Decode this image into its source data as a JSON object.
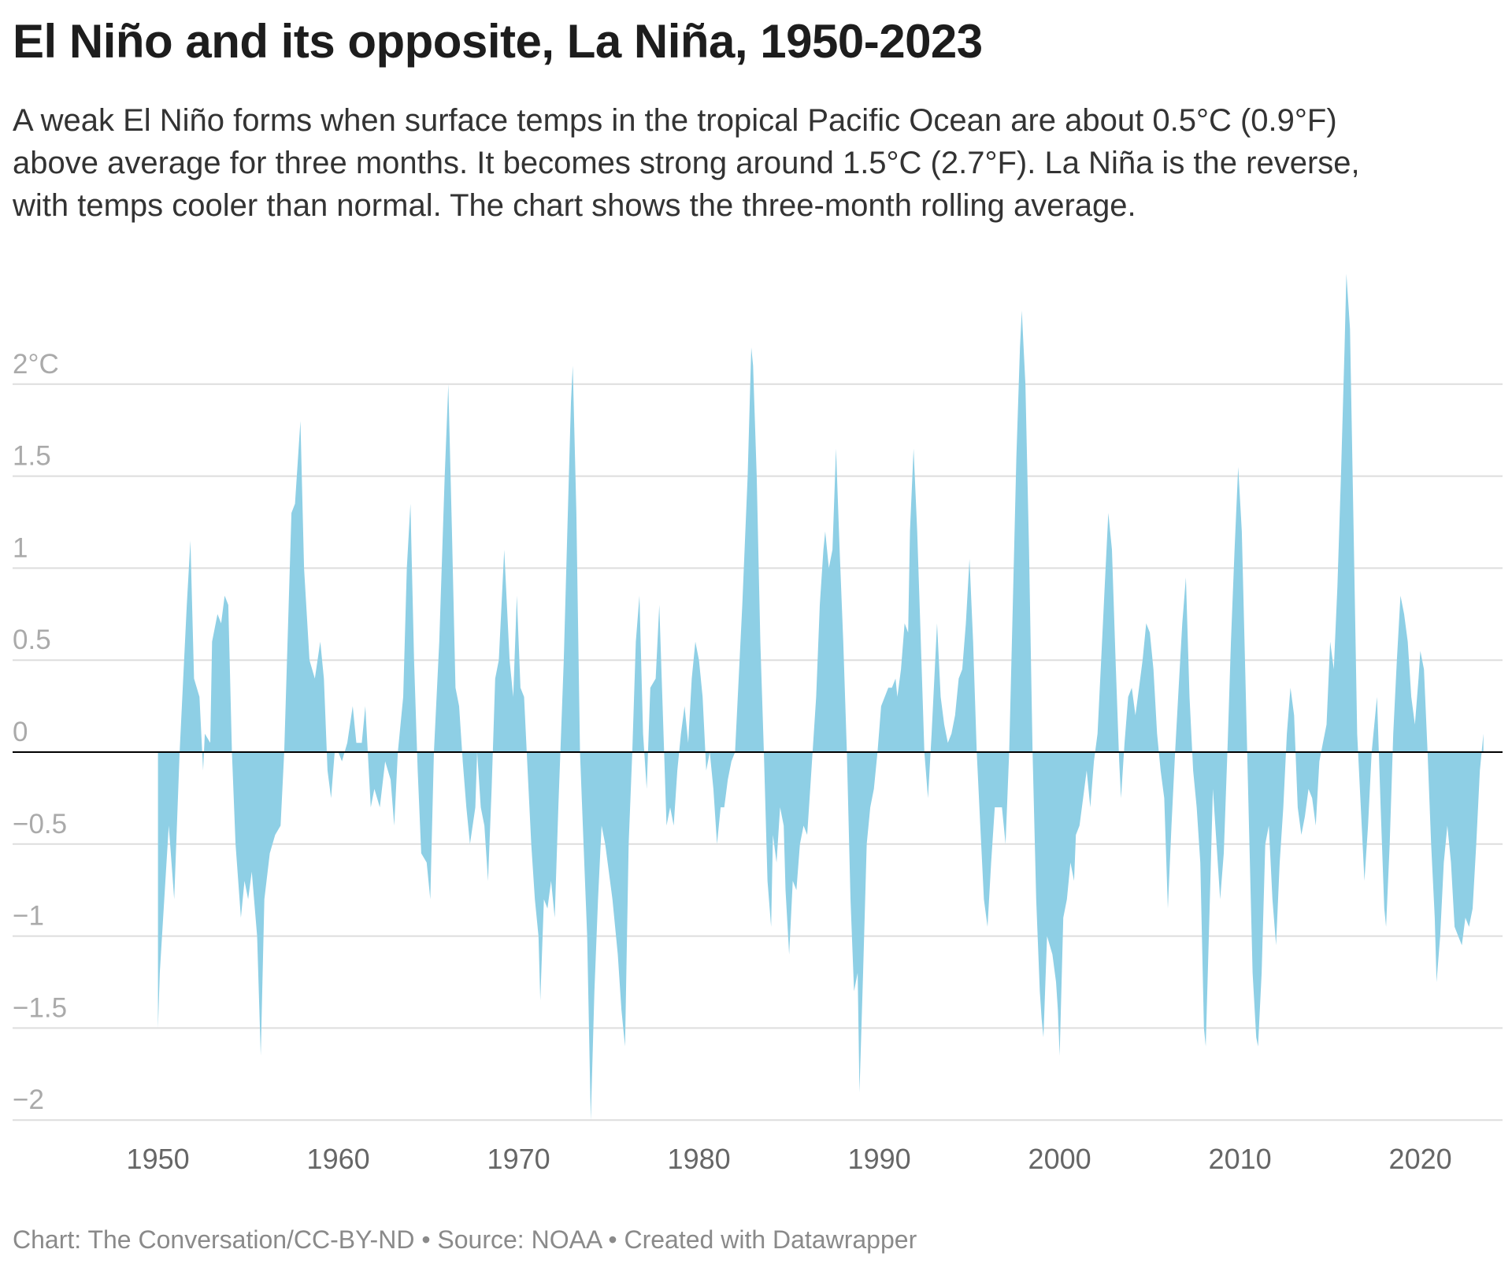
{
  "title": "El Niño and its opposite, La Niña, 1950-2023",
  "subtitle_lines": [
    "A weak El Niño forms when surface temps in the tropical Pacific Ocean are about 0.5°C (0.9°F)",
    "above average for three months. It becomes strong around 1.5°C (2.7°F). La Niña is the reverse,",
    "with temps cooler than normal. The chart shows the three-month rolling average."
  ],
  "footer": "Chart: The Conversation/CC-BY-ND • Source: NOAA • Created with Datawrapper",
  "chart_data": {
    "type": "area",
    "xlabel": "",
    "ylabel": "",
    "ylim": [
      -2,
      2
    ],
    "xlim": [
      1950,
      2023.5
    ],
    "grid": true,
    "fill_color": "#8ecfe5",
    "baseline_color": "#000000",
    "y_ticks": [
      {
        "value": 2,
        "label": "2°C"
      },
      {
        "value": 1.5,
        "label": "1.5"
      },
      {
        "value": 1,
        "label": "1"
      },
      {
        "value": 0.5,
        "label": "0.5"
      },
      {
        "value": 0,
        "label": "0"
      },
      {
        "value": -0.5,
        "label": "−0.5"
      },
      {
        "value": -1,
        "label": "−1"
      },
      {
        "value": -1.5,
        "label": "−1.5"
      },
      {
        "value": -2,
        "label": "−2"
      }
    ],
    "x_ticks": [
      {
        "value": 1950,
        "label": "1950"
      },
      {
        "value": 1960,
        "label": "1960"
      },
      {
        "value": 1970,
        "label": "1970"
      },
      {
        "value": 1980,
        "label": "1980"
      },
      {
        "value": 1990,
        "label": "1990"
      },
      {
        "value": 2000,
        "label": "2000"
      },
      {
        "value": 2010,
        "label": "2010"
      },
      {
        "value": 2020,
        "label": "2020"
      }
    ],
    "points": [
      [
        1950.0,
        -1.5
      ],
      [
        1950.1,
        -1.2
      ],
      [
        1950.6,
        -0.4
      ],
      [
        1950.9,
        -0.8
      ],
      [
        1951.2,
        0.0
      ],
      [
        1951.6,
        0.8
      ],
      [
        1951.8,
        1.15
      ],
      [
        1952.0,
        0.4
      ],
      [
        1952.3,
        0.3
      ],
      [
        1952.5,
        -0.1
      ],
      [
        1952.6,
        0.1
      ],
      [
        1952.9,
        0.05
      ],
      [
        1953.0,
        0.6
      ],
      [
        1953.3,
        0.75
      ],
      [
        1953.5,
        0.7
      ],
      [
        1953.7,
        0.85
      ],
      [
        1953.9,
        0.8
      ],
      [
        1954.1,
        0.0
      ],
      [
        1954.3,
        -0.5
      ],
      [
        1954.6,
        -0.9
      ],
      [
        1954.8,
        -0.7
      ],
      [
        1955.0,
        -0.8
      ],
      [
        1955.2,
        -0.65
      ],
      [
        1955.5,
        -1.0
      ],
      [
        1955.7,
        -1.65
      ],
      [
        1955.9,
        -0.8
      ],
      [
        1956.2,
        -0.55
      ],
      [
        1956.5,
        -0.45
      ],
      [
        1956.8,
        -0.4
      ],
      [
        1957.0,
        0.0
      ],
      [
        1957.4,
        1.3
      ],
      [
        1957.6,
        1.35
      ],
      [
        1957.9,
        1.8
      ],
      [
        1958.1,
        1.0
      ],
      [
        1958.4,
        0.5
      ],
      [
        1958.7,
        0.4
      ],
      [
        1959.0,
        0.6
      ],
      [
        1959.2,
        0.4
      ],
      [
        1959.4,
        -0.1
      ],
      [
        1959.6,
        -0.25
      ],
      [
        1959.8,
        0.0
      ],
      [
        1960.0,
        0.0
      ],
      [
        1960.2,
        -0.05
      ],
      [
        1960.5,
        0.05
      ],
      [
        1960.8,
        0.25
      ],
      [
        1961.0,
        0.05
      ],
      [
        1961.3,
        0.05
      ],
      [
        1961.5,
        0.25
      ],
      [
        1961.8,
        -0.3
      ],
      [
        1962.0,
        -0.2
      ],
      [
        1962.3,
        -0.3
      ],
      [
        1962.6,
        -0.05
      ],
      [
        1962.9,
        -0.15
      ],
      [
        1963.1,
        -0.4
      ],
      [
        1963.3,
        0.0
      ],
      [
        1963.6,
        0.3
      ],
      [
        1963.8,
        1.0
      ],
      [
        1964.0,
        1.35
      ],
      [
        1964.2,
        0.5
      ],
      [
        1964.4,
        -0.1
      ],
      [
        1964.6,
        -0.55
      ],
      [
        1964.9,
        -0.6
      ],
      [
        1965.1,
        -0.8
      ],
      [
        1965.3,
        0.0
      ],
      [
        1965.6,
        0.6
      ],
      [
        1965.9,
        1.5
      ],
      [
        1966.1,
        2.0
      ],
      [
        1966.3,
        1.2
      ],
      [
        1966.5,
        0.35
      ],
      [
        1966.7,
        0.25
      ],
      [
        1966.9,
        -0.05
      ],
      [
        1967.1,
        -0.3
      ],
      [
        1967.3,
        -0.5
      ],
      [
        1967.6,
        -0.3
      ],
      [
        1967.7,
        0.0
      ],
      [
        1967.9,
        -0.3
      ],
      [
        1968.1,
        -0.4
      ],
      [
        1968.3,
        -0.7
      ],
      [
        1968.5,
        -0.2
      ],
      [
        1968.7,
        0.4
      ],
      [
        1968.9,
        0.5
      ],
      [
        1969.1,
        0.9
      ],
      [
        1969.2,
        1.1
      ],
      [
        1969.5,
        0.5
      ],
      [
        1969.7,
        0.3
      ],
      [
        1969.9,
        0.85
      ],
      [
        1970.1,
        0.35
      ],
      [
        1970.3,
        0.3
      ],
      [
        1970.5,
        -0.1
      ],
      [
        1970.7,
        -0.5
      ],
      [
        1970.9,
        -0.8
      ],
      [
        1971.1,
        -1.0
      ],
      [
        1971.2,
        -1.35
      ],
      [
        1971.4,
        -0.8
      ],
      [
        1971.6,
        -0.85
      ],
      [
        1971.8,
        -0.7
      ],
      [
        1972.0,
        -0.9
      ],
      [
        1972.2,
        -0.3
      ],
      [
        1972.5,
        0.5
      ],
      [
        1972.7,
        1.2
      ],
      [
        1972.9,
        1.9
      ],
      [
        1973.0,
        2.1
      ],
      [
        1973.2,
        1.3
      ],
      [
        1973.4,
        0.0
      ],
      [
        1973.6,
        -0.5
      ],
      [
        1973.8,
        -1.0
      ],
      [
        1974.0,
        -2.0
      ],
      [
        1974.2,
        -1.3
      ],
      [
        1974.4,
        -0.8
      ],
      [
        1974.6,
        -0.4
      ],
      [
        1974.8,
        -0.5
      ],
      [
        1975.0,
        -0.65
      ],
      [
        1975.2,
        -0.8
      ],
      [
        1975.5,
        -1.1
      ],
      [
        1975.7,
        -1.4
      ],
      [
        1975.9,
        -1.6
      ],
      [
        1976.1,
        -0.5
      ],
      [
        1976.3,
        0.0
      ],
      [
        1976.5,
        0.6
      ],
      [
        1976.7,
        0.85
      ],
      [
        1976.9,
        0.1
      ],
      [
        1977.1,
        -0.2
      ],
      [
        1977.3,
        0.35
      ],
      [
        1977.6,
        0.4
      ],
      [
        1977.8,
        0.8
      ],
      [
        1978.0,
        0.2
      ],
      [
        1978.2,
        -0.4
      ],
      [
        1978.4,
        -0.3
      ],
      [
        1978.6,
        -0.4
      ],
      [
        1978.8,
        -0.1
      ],
      [
        1979.0,
        0.1
      ],
      [
        1979.2,
        0.25
      ],
      [
        1979.4,
        0.05
      ],
      [
        1979.6,
        0.4
      ],
      [
        1979.8,
        0.6
      ],
      [
        1980.0,
        0.5
      ],
      [
        1980.2,
        0.3
      ],
      [
        1980.4,
        -0.1
      ],
      [
        1980.6,
        0.0
      ],
      [
        1980.8,
        -0.2
      ],
      [
        1981.0,
        -0.5
      ],
      [
        1981.2,
        -0.3
      ],
      [
        1981.4,
        -0.3
      ],
      [
        1981.6,
        -0.15
      ],
      [
        1981.8,
        -0.05
      ],
      [
        1982.0,
        0.0
      ],
      [
        1982.2,
        0.4
      ],
      [
        1982.4,
        0.8
      ],
      [
        1982.7,
        1.5
      ],
      [
        1982.9,
        2.2
      ],
      [
        1983.0,
        2.1
      ],
      [
        1983.2,
        1.5
      ],
      [
        1983.4,
        0.6
      ],
      [
        1983.6,
        0.0
      ],
      [
        1983.8,
        -0.7
      ],
      [
        1984.0,
        -0.95
      ],
      [
        1984.1,
        -0.45
      ],
      [
        1984.3,
        -0.6
      ],
      [
        1984.5,
        -0.3
      ],
      [
        1984.7,
        -0.4
      ],
      [
        1984.8,
        -0.75
      ],
      [
        1985.0,
        -1.1
      ],
      [
        1985.2,
        -0.7
      ],
      [
        1985.4,
        -0.75
      ],
      [
        1985.6,
        -0.5
      ],
      [
        1985.8,
        -0.4
      ],
      [
        1986.0,
        -0.45
      ],
      [
        1986.2,
        -0.15
      ],
      [
        1986.5,
        0.3
      ],
      [
        1986.7,
        0.8
      ],
      [
        1986.9,
        1.1
      ],
      [
        1987.0,
        1.2
      ],
      [
        1987.2,
        1.0
      ],
      [
        1987.4,
        1.1
      ],
      [
        1987.6,
        1.65
      ],
      [
        1987.8,
        1.1
      ],
      [
        1988.0,
        0.6
      ],
      [
        1988.2,
        0.0
      ],
      [
        1988.4,
        -0.8
      ],
      [
        1988.6,
        -1.3
      ],
      [
        1988.8,
        -1.2
      ],
      [
        1988.9,
        -1.85
      ],
      [
        1989.1,
        -1.2
      ],
      [
        1989.3,
        -0.5
      ],
      [
        1989.5,
        -0.3
      ],
      [
        1989.7,
        -0.2
      ],
      [
        1989.9,
        0.0
      ],
      [
        1990.1,
        0.25
      ],
      [
        1990.3,
        0.3
      ],
      [
        1990.5,
        0.35
      ],
      [
        1990.7,
        0.35
      ],
      [
        1990.9,
        0.4
      ],
      [
        1991.0,
        0.3
      ],
      [
        1991.2,
        0.45
      ],
      [
        1991.4,
        0.7
      ],
      [
        1991.6,
        0.65
      ],
      [
        1991.7,
        1.2
      ],
      [
        1991.9,
        1.65
      ],
      [
        1992.1,
        1.2
      ],
      [
        1992.3,
        0.6
      ],
      [
        1992.5,
        0.0
      ],
      [
        1992.7,
        -0.25
      ],
      [
        1992.9,
        0.1
      ],
      [
        1993.1,
        0.5
      ],
      [
        1993.2,
        0.7
      ],
      [
        1993.4,
        0.3
      ],
      [
        1993.6,
        0.15
      ],
      [
        1993.8,
        0.05
      ],
      [
        1994.0,
        0.1
      ],
      [
        1994.2,
        0.2
      ],
      [
        1994.4,
        0.4
      ],
      [
        1994.6,
        0.45
      ],
      [
        1994.8,
        0.7
      ],
      [
        1995.0,
        1.05
      ],
      [
        1995.2,
        0.6
      ],
      [
        1995.4,
        0.0
      ],
      [
        1995.6,
        -0.4
      ],
      [
        1995.8,
        -0.8
      ],
      [
        1996.0,
        -0.95
      ],
      [
        1996.2,
        -0.6
      ],
      [
        1996.4,
        -0.3
      ],
      [
        1996.6,
        -0.3
      ],
      [
        1996.8,
        -0.3
      ],
      [
        1997.0,
        -0.5
      ],
      [
        1997.2,
        0.0
      ],
      [
        1997.4,
        0.8
      ],
      [
        1997.6,
        1.6
      ],
      [
        1997.8,
        2.2
      ],
      [
        1997.9,
        2.4
      ],
      [
        1998.1,
        2.0
      ],
      [
        1998.3,
        1.1
      ],
      [
        1998.5,
        0.0
      ],
      [
        1998.7,
        -0.8
      ],
      [
        1998.9,
        -1.3
      ],
      [
        1999.0,
        -1.45
      ],
      [
        1999.1,
        -1.55
      ],
      [
        1999.3,
        -1.0
      ],
      [
        1999.6,
        -1.1
      ],
      [
        1999.8,
        -1.25
      ],
      [
        1999.9,
        -1.4
      ],
      [
        2000.0,
        -1.65
      ],
      [
        2000.2,
        -0.9
      ],
      [
        2000.4,
        -0.8
      ],
      [
        2000.6,
        -0.6
      ],
      [
        2000.8,
        -0.7
      ],
      [
        2000.9,
        -0.45
      ],
      [
        2001.1,
        -0.4
      ],
      [
        2001.3,
        -0.25
      ],
      [
        2001.5,
        -0.1
      ],
      [
        2001.7,
        -0.3
      ],
      [
        2001.9,
        -0.05
      ],
      [
        2002.1,
        0.1
      ],
      [
        2002.3,
        0.5
      ],
      [
        2002.5,
        0.9
      ],
      [
        2002.7,
        1.3
      ],
      [
        2002.9,
        1.1
      ],
      [
        2003.1,
        0.5
      ],
      [
        2003.3,
        -0.05
      ],
      [
        2003.4,
        -0.25
      ],
      [
        2003.6,
        0.05
      ],
      [
        2003.8,
        0.3
      ],
      [
        2004.0,
        0.35
      ],
      [
        2004.2,
        0.2
      ],
      [
        2004.4,
        0.35
      ],
      [
        2004.6,
        0.5
      ],
      [
        2004.8,
        0.7
      ],
      [
        2005.0,
        0.65
      ],
      [
        2005.2,
        0.45
      ],
      [
        2005.4,
        0.1
      ],
      [
        2005.6,
        -0.1
      ],
      [
        2005.8,
        -0.25
      ],
      [
        2006.0,
        -0.85
      ],
      [
        2006.2,
        -0.4
      ],
      [
        2006.4,
        0.0
      ],
      [
        2006.6,
        0.35
      ],
      [
        2006.8,
        0.7
      ],
      [
        2007.0,
        0.95
      ],
      [
        2007.2,
        0.3
      ],
      [
        2007.4,
        -0.1
      ],
      [
        2007.6,
        -0.3
      ],
      [
        2007.8,
        -0.6
      ],
      [
        2008.0,
        -1.5
      ],
      [
        2008.1,
        -1.6
      ],
      [
        2008.3,
        -0.9
      ],
      [
        2008.5,
        -0.2
      ],
      [
        2008.7,
        -0.5
      ],
      [
        2008.9,
        -0.8
      ],
      [
        2009.1,
        -0.55
      ],
      [
        2009.3,
        0.0
      ],
      [
        2009.5,
        0.6
      ],
      [
        2009.7,
        1.1
      ],
      [
        2009.9,
        1.55
      ],
      [
        2010.1,
        1.2
      ],
      [
        2010.3,
        0.4
      ],
      [
        2010.5,
        -0.4
      ],
      [
        2010.7,
        -1.2
      ],
      [
        2010.9,
        -1.55
      ],
      [
        2011.0,
        -1.6
      ],
      [
        2011.2,
        -1.2
      ],
      [
        2011.4,
        -0.5
      ],
      [
        2011.6,
        -0.4
      ],
      [
        2011.8,
        -0.8
      ],
      [
        2012.0,
        -1.05
      ],
      [
        2012.2,
        -0.6
      ],
      [
        2012.4,
        -0.3
      ],
      [
        2012.6,
        0.1
      ],
      [
        2012.8,
        0.35
      ],
      [
        2013.0,
        0.2
      ],
      [
        2013.2,
        -0.3
      ],
      [
        2013.4,
        -0.45
      ],
      [
        2013.6,
        -0.35
      ],
      [
        2013.8,
        -0.2
      ],
      [
        2014.0,
        -0.25
      ],
      [
        2014.2,
        -0.4
      ],
      [
        2014.4,
        -0.05
      ],
      [
        2014.6,
        0.05
      ],
      [
        2014.8,
        0.15
      ],
      [
        2015.0,
        0.6
      ],
      [
        2015.2,
        0.45
      ],
      [
        2015.4,
        0.9
      ],
      [
        2015.6,
        1.5
      ],
      [
        2015.8,
        2.2
      ],
      [
        2015.9,
        2.6
      ],
      [
        2016.1,
        2.3
      ],
      [
        2016.3,
        1.2
      ],
      [
        2016.5,
        0.1
      ],
      [
        2016.7,
        -0.3
      ],
      [
        2016.9,
        -0.7
      ],
      [
        2017.1,
        -0.4
      ],
      [
        2017.3,
        0.0
      ],
      [
        2017.5,
        0.2
      ],
      [
        2017.6,
        0.3
      ],
      [
        2017.8,
        -0.3
      ],
      [
        2018.0,
        -0.85
      ],
      [
        2018.1,
        -0.95
      ],
      [
        2018.3,
        -0.5
      ],
      [
        2018.5,
        0.1
      ],
      [
        2018.7,
        0.5
      ],
      [
        2018.9,
        0.85
      ],
      [
        2019.1,
        0.75
      ],
      [
        2019.3,
        0.6
      ],
      [
        2019.5,
        0.3
      ],
      [
        2019.7,
        0.15
      ],
      [
        2019.9,
        0.4
      ],
      [
        2020.0,
        0.55
      ],
      [
        2020.2,
        0.45
      ],
      [
        2020.4,
        0.0
      ],
      [
        2020.6,
        -0.5
      ],
      [
        2020.8,
        -0.9
      ],
      [
        2020.9,
        -1.25
      ],
      [
        2021.1,
        -1.0
      ],
      [
        2021.3,
        -0.6
      ],
      [
        2021.5,
        -0.4
      ],
      [
        2021.7,
        -0.6
      ],
      [
        2021.9,
        -0.95
      ],
      [
        2022.1,
        -1.0
      ],
      [
        2022.3,
        -1.05
      ],
      [
        2022.5,
        -0.9
      ],
      [
        2022.7,
        -0.95
      ],
      [
        2022.9,
        -0.85
      ],
      [
        2023.1,
        -0.5
      ],
      [
        2023.3,
        -0.1
      ],
      [
        2023.5,
        0.1
      ]
    ]
  }
}
